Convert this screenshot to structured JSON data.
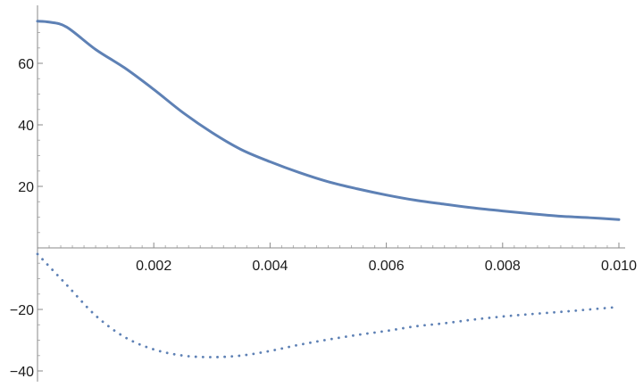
{
  "chart_data": {
    "type": "line",
    "title": "",
    "xlabel": "",
    "ylabel": "",
    "xlim": [
      0,
      0.01
    ],
    "ylim": [
      -40,
      74
    ],
    "grid": false,
    "legend": "none",
    "x_ticks": [
      0.002,
      0.004,
      0.006,
      0.008,
      0.01
    ],
    "x_tick_labels": [
      "0.002",
      "0.004",
      "0.006",
      "0.008",
      "0.010"
    ],
    "y_ticks": [
      60,
      40,
      20,
      -20,
      -40
    ],
    "y_tick_labels": [
      "60",
      "40",
      "20",
      "−20",
      "−40"
    ],
    "series": [
      {
        "style": "solid",
        "color": "#5e81b5",
        "points": [
          [
            0.0,
            73.7
          ],
          [
            0.0002,
            73.4
          ],
          [
            0.0005,
            71.8
          ],
          [
            0.001,
            64.5
          ],
          [
            0.0015,
            58.5
          ],
          [
            0.002,
            51.5
          ],
          [
            0.0025,
            44.0
          ],
          [
            0.003,
            37.5
          ],
          [
            0.0035,
            32.0
          ],
          [
            0.004,
            28.0
          ],
          [
            0.0045,
            24.5
          ],
          [
            0.005,
            21.5
          ],
          [
            0.0055,
            19.2
          ],
          [
            0.006,
            17.2
          ],
          [
            0.0065,
            15.5
          ],
          [
            0.007,
            14.2
          ],
          [
            0.0075,
            13.0
          ],
          [
            0.008,
            12.0
          ],
          [
            0.0085,
            11.1
          ],
          [
            0.009,
            10.3
          ],
          [
            0.0095,
            9.8
          ],
          [
            0.01,
            9.2
          ]
        ]
      },
      {
        "style": "dotted",
        "color": "#5e81b5",
        "points": [
          [
            0.0,
            -2.0
          ],
          [
            0.0005,
            -12.0
          ],
          [
            0.001,
            -22.0
          ],
          [
            0.0015,
            -29.0
          ],
          [
            0.002,
            -33.0
          ],
          [
            0.0025,
            -35.0
          ],
          [
            0.003,
            -35.5
          ],
          [
            0.0035,
            -35.0
          ],
          [
            0.004,
            -33.5
          ],
          [
            0.0045,
            -31.5
          ],
          [
            0.005,
            -29.8
          ],
          [
            0.0055,
            -28.3
          ],
          [
            0.006,
            -27.0
          ],
          [
            0.0065,
            -25.5
          ],
          [
            0.007,
            -24.5
          ],
          [
            0.0075,
            -23.3
          ],
          [
            0.008,
            -22.3
          ],
          [
            0.0085,
            -21.5
          ],
          [
            0.009,
            -20.8
          ],
          [
            0.0095,
            -20.0
          ],
          [
            0.01,
            -19.2
          ]
        ]
      }
    ]
  }
}
